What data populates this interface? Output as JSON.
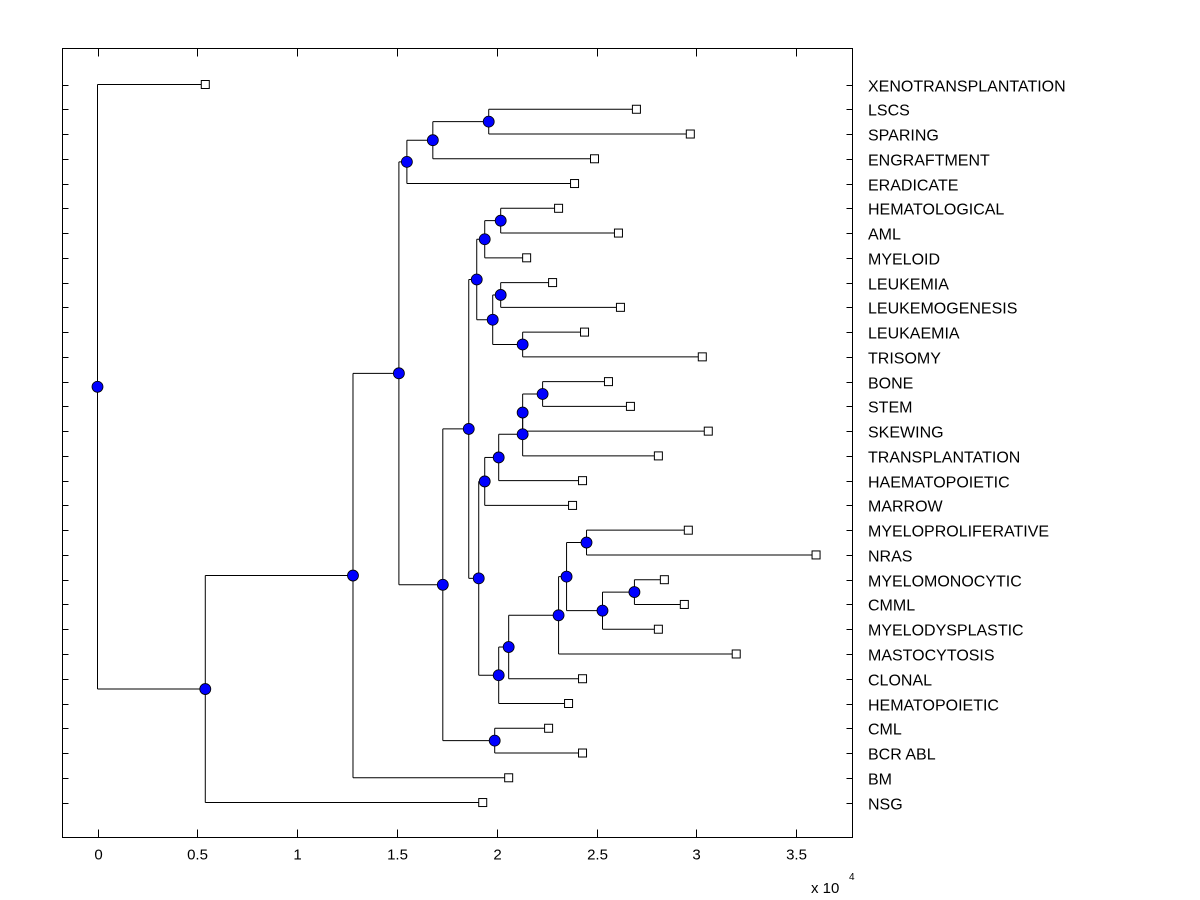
{
  "chart_data": {
    "type": "dendrogram",
    "xlim": [
      -0.17,
      3.78
    ],
    "x_ticks": [
      "0",
      "0.5",
      "1",
      "1.5",
      "2",
      "2.5",
      "3",
      "3.5"
    ],
    "x_tick_values": [
      0,
      0.5,
      1,
      1.5,
      2,
      2.5,
      3,
      3.5
    ],
    "x_exponent_label": "x 10",
    "x_exponent": "4",
    "grid": false,
    "colors": {
      "node_fill": "#0000ff",
      "leaf_fill": "#ffffff",
      "line": "#000000"
    },
    "leaf_order": [
      "XENOTRANSPLANTATION",
      "LSCS",
      "SPARING",
      "ENGRAFTMENT",
      "ERADICATE",
      "HEMATOLOGICAL",
      "AML",
      "MYELOID",
      "LEUKEMIA",
      "LEUKEMOGENESIS",
      "LEUKAEMIA",
      "TRISOMY",
      "BONE",
      "STEM",
      "SKEWING",
      "TRANSPLANTATION",
      "HAEMATOPOIETIC",
      "MARROW",
      "MYELOPROLIFERATIVE",
      "NRAS",
      "MYELOMONOCYTIC",
      "CMML",
      "MYELODYSPLASTIC",
      "MASTOCYTOSIS",
      "CLONAL",
      "HEMATOPOIETIC",
      "CML",
      "BCR ABL",
      "BM",
      "NSG"
    ],
    "tree": {
      "x": 0,
      "children": [
        {
          "leaf": "XENOTRANSPLANTATION",
          "x": 0.54
        },
        {
          "x": 0.54,
          "children": [
            {
              "x": 1.28,
              "children": [
                {
                  "x": 1.51,
                  "children": [
                    {
                      "x": 1.55,
                      "children": [
                        {
                          "x": 1.68,
                          "children": [
                            {
                              "x": 1.96,
                              "children": [
                                {
                                  "leaf": "LSCS",
                                  "x": 2.7
                                },
                                {
                                  "leaf": "SPARING",
                                  "x": 2.97
                                }
                              ]
                            },
                            {
                              "leaf": "ENGRAFTMENT",
                              "x": 2.49
                            }
                          ]
                        },
                        {
                          "leaf": "ERADICATE",
                          "x": 2.39
                        }
                      ]
                    },
                    {
                      "x": 1.73,
                      "children": [
                        {
                          "x": 1.86,
                          "children": [
                            {
                              "x": 1.9,
                              "children": [
                                {
                                  "x": 1.94,
                                  "children": [
                                    {
                                      "x": 2.02,
                                      "children": [
                                        {
                                          "leaf": "HEMATOLOGICAL",
                                          "x": 2.31
                                        },
                                        {
                                          "leaf": "AML",
                                          "x": 2.61
                                        }
                                      ]
                                    },
                                    {
                                      "leaf": "MYELOID",
                                      "x": 2.15
                                    }
                                  ]
                                },
                                {
                                  "x": 1.98,
                                  "children": [
                                    {
                                      "x": 2.02,
                                      "children": [
                                        {
                                          "leaf": "LEUKEMIA",
                                          "x": 2.28
                                        },
                                        {
                                          "leaf": "LEUKEMOGENESIS",
                                          "x": 2.62
                                        }
                                      ]
                                    },
                                    {
                                      "x": 2.13,
                                      "children": [
                                        {
                                          "leaf": "LEUKAEMIA",
                                          "x": 2.44
                                        },
                                        {
                                          "leaf": "TRISOMY",
                                          "x": 3.03
                                        }
                                      ]
                                    }
                                  ]
                                }
                              ]
                            },
                            {
                              "x": 1.91,
                              "children": [
                                {
                                  "x": 1.94,
                                  "children": [
                                    {
                                      "x": 2.01,
                                      "children": [
                                        {
                                          "x": 2.13,
                                          "children": [
                                            {
                                              "x": 2.13,
                                              "children": [
                                                {
                                                  "x": 2.23,
                                                  "children": [
                                                    {
                                                      "leaf": "BONE",
                                                      "x": 2.56
                                                    },
                                                    {
                                                      "leaf": "STEM",
                                                      "x": 2.67
                                                    }
                                                  ]
                                                },
                                                {
                                                  "leaf": "SKEWING",
                                                  "x": 3.06
                                                }
                                              ]
                                            },
                                            {
                                              "leaf": "TRANSPLANTATION",
                                              "x": 2.81
                                            }
                                          ]
                                        },
                                        {
                                          "leaf": "HAEMATOPOIETIC",
                                          "x": 2.43
                                        }
                                      ]
                                    },
                                    {
                                      "leaf": "MARROW",
                                      "x": 2.38
                                    }
                                  ]
                                },
                                {
                                  "x": 2.01,
                                  "children": [
                                    {
                                      "x": 2.06,
                                      "children": [
                                        {
                                          "x": 2.31,
                                          "children": [
                                            {
                                              "x": 2.35,
                                              "children": [
                                                {
                                                  "x": 2.45,
                                                  "children": [
                                                    {
                                                      "leaf": "MYELOPROLIFERATIVE",
                                                      "x": 2.96
                                                    },
                                                    {
                                                      "leaf": "NRAS",
                                                      "x": 3.6
                                                    }
                                                  ]
                                                },
                                                {
                                                  "x": 2.53,
                                                  "children": [
                                                    {
                                                      "x": 2.69,
                                                      "children": [
                                                        {
                                                          "leaf": "MYELOMONOCYTIC",
                                                          "x": 2.84
                                                        },
                                                        {
                                                          "leaf": "CMML",
                                                          "x": 2.94
                                                        }
                                                      ]
                                                    },
                                                    {
                                                      "leaf": "MYELODYSPLASTIC",
                                                      "x": 2.81
                                                    }
                                                  ]
                                                }
                                              ]
                                            },
                                            {
                                              "leaf": "MASTOCYTOSIS",
                                              "x": 3.2
                                            }
                                          ]
                                        },
                                        {
                                          "leaf": "CLONAL",
                                          "x": 2.43
                                        }
                                      ]
                                    },
                                    {
                                      "leaf": "HEMATOPOIETIC",
                                      "x": 2.36
                                    }
                                  ]
                                }
                              ]
                            }
                          ]
                        },
                        {
                          "x": 1.99,
                          "children": [
                            {
                              "leaf": "CML",
                              "x": 2.26
                            },
                            {
                              "leaf": "BCR ABL",
                              "x": 2.43
                            }
                          ]
                        }
                      ]
                    }
                  ]
                },
                {
                  "leaf": "BM",
                  "x": 2.06
                }
              ]
            },
            {
              "leaf": "NSG",
              "x": 1.93
            }
          ]
        }
      ]
    }
  }
}
